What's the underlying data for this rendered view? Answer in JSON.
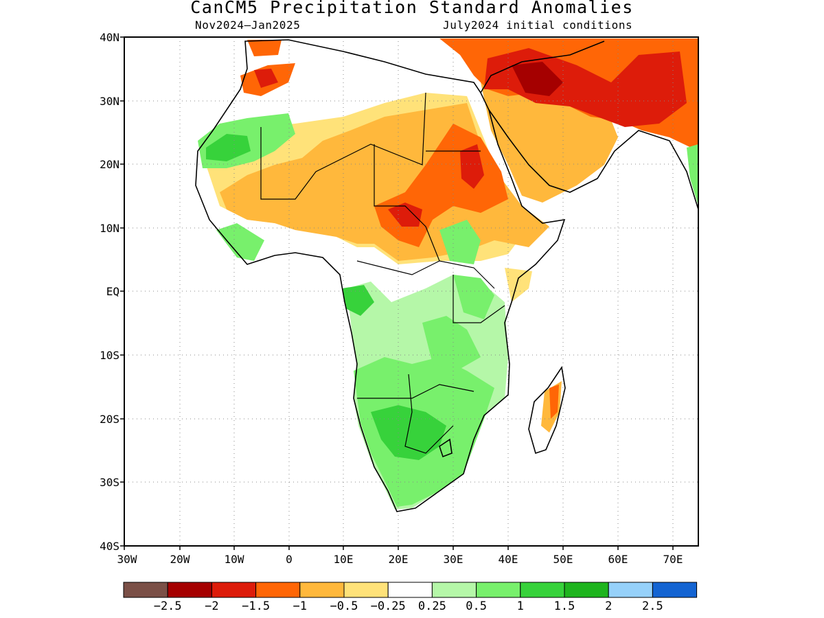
{
  "map": {
    "title": "CanCM5 Precipitation Standard Anomalies",
    "period": "Nov2024–Jan2025",
    "init": "July2024 initial conditions",
    "lat_labels": [
      "40N",
      "30N",
      "20N",
      "10N",
      "EQ",
      "10S",
      "20S",
      "30S",
      "40S"
    ],
    "lon_labels": [
      "30W",
      "20W",
      "10W",
      "0",
      "10E",
      "20E",
      "30E",
      "40E",
      "50E",
      "60E",
      "70E"
    ]
  },
  "colorbar": {
    "colors": [
      "#7b5047",
      "#a50000",
      "#dd1c0a",
      "#ff6606",
      "#ffb83c",
      "#ffe279",
      "#ffffff",
      "#b5f7a8",
      "#78f06c",
      "#37d23b",
      "#1eb41e",
      "#96d1fa",
      "#1464d2"
    ],
    "labels": [
      "−2.5",
      "−2",
      "−1.5",
      "−1",
      "−0.5",
      "−0.25",
      "0.25",
      "0.5",
      "1",
      "1.5",
      "2",
      "2.5"
    ]
  }
}
